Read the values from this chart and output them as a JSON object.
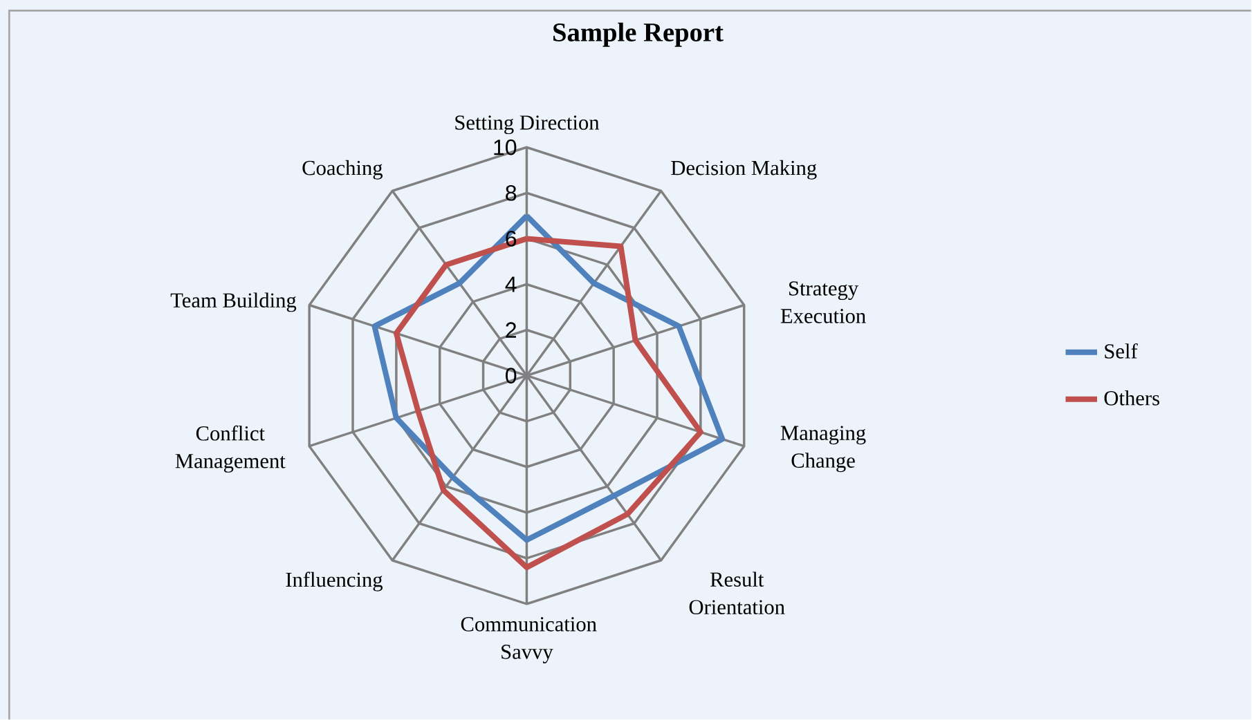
{
  "chart_data": {
    "type": "radar",
    "title": "Sample Report",
    "categories": [
      "Setting Direction",
      "Decision Making",
      "Strategy Execution",
      "Managing Change",
      "Result Orientation",
      "Communication Savvy",
      "Influencing",
      "Conflict Management",
      "Team Building",
      "Coaching"
    ],
    "series": [
      {
        "name": "Self",
        "color": "#4f81bd",
        "values": [
          7,
          5,
          7,
          9,
          6.5,
          7.2,
          5.5,
          6,
          7,
          5
        ]
      },
      {
        "name": "Others",
        "color": "#c0504d",
        "values": [
          6,
          7,
          5,
          8,
          7.5,
          8.4,
          6.2,
          5,
          6,
          6
        ]
      }
    ],
    "ylim": [
      0,
      10
    ],
    "yticks": [
      0,
      2,
      4,
      6,
      8,
      10
    ],
    "grid": true,
    "legend": "right",
    "marker": "none",
    "line_style": "solid"
  }
}
